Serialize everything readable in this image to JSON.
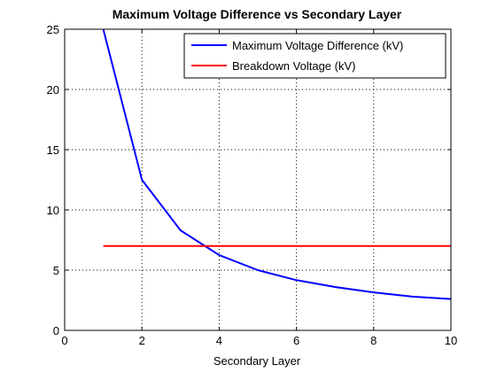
{
  "chart_data": {
    "type": "line",
    "title": "Maximum Voltage Difference vs Secondary Layer",
    "xlabel": "Secondary Layer",
    "ylabel": "",
    "xlim": [
      0,
      10
    ],
    "ylim": [
      0,
      25
    ],
    "xticks": [
      0,
      2,
      4,
      6,
      8,
      10
    ],
    "yticks": [
      0,
      5,
      10,
      15,
      20,
      25
    ],
    "grid": true,
    "legend_position": "top-right",
    "series": [
      {
        "name": "Maximum Voltage Difference (kV)",
        "color": "#0000ff",
        "x": [
          1,
          2,
          3,
          4,
          5,
          6,
          7,
          8,
          9,
          10
        ],
        "y": [
          25.0,
          12.5,
          8.3,
          6.25,
          5.0,
          4.17,
          3.6,
          3.15,
          2.8,
          2.6
        ]
      },
      {
        "name": "Breakdown Voltage (kV)",
        "color": "#ff0000",
        "x": [
          1,
          10
        ],
        "y": [
          7.0,
          7.0
        ]
      }
    ]
  }
}
